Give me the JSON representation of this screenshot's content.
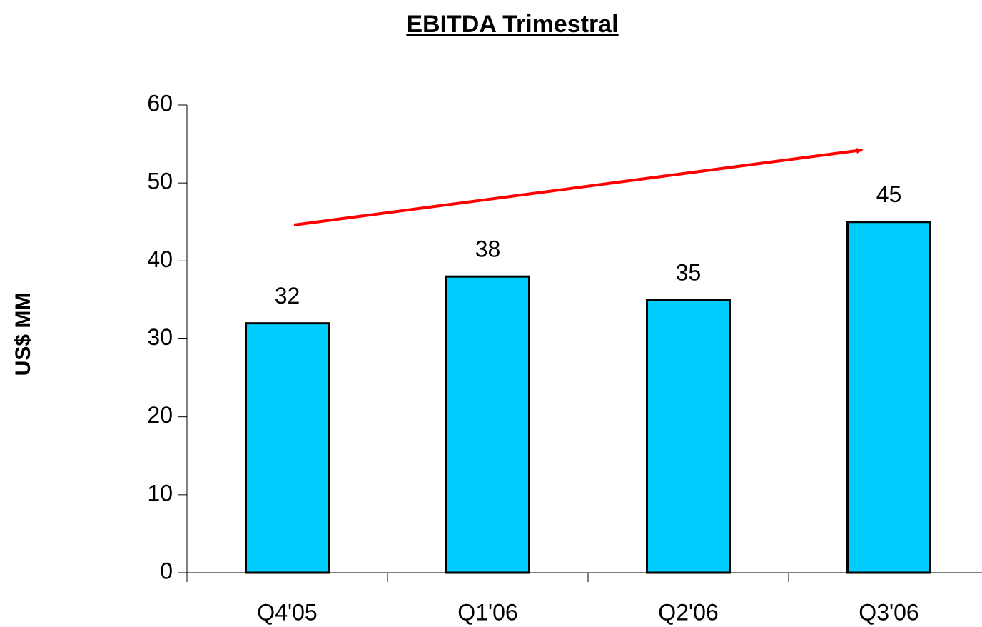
{
  "chart_data": {
    "type": "bar",
    "title": "EBITDA Trimestral",
    "y_label": "US$ MM",
    "categories": [
      "Q4'05",
      "Q1'06",
      "Q2'06",
      "Q3'06"
    ],
    "values": [
      32,
      38,
      35,
      45
    ],
    "color": "#00ccff",
    "ylim": [
      0,
      60
    ],
    "yticks": [
      0,
      10,
      20,
      30,
      40,
      50,
      60
    ],
    "grid": false
  }
}
